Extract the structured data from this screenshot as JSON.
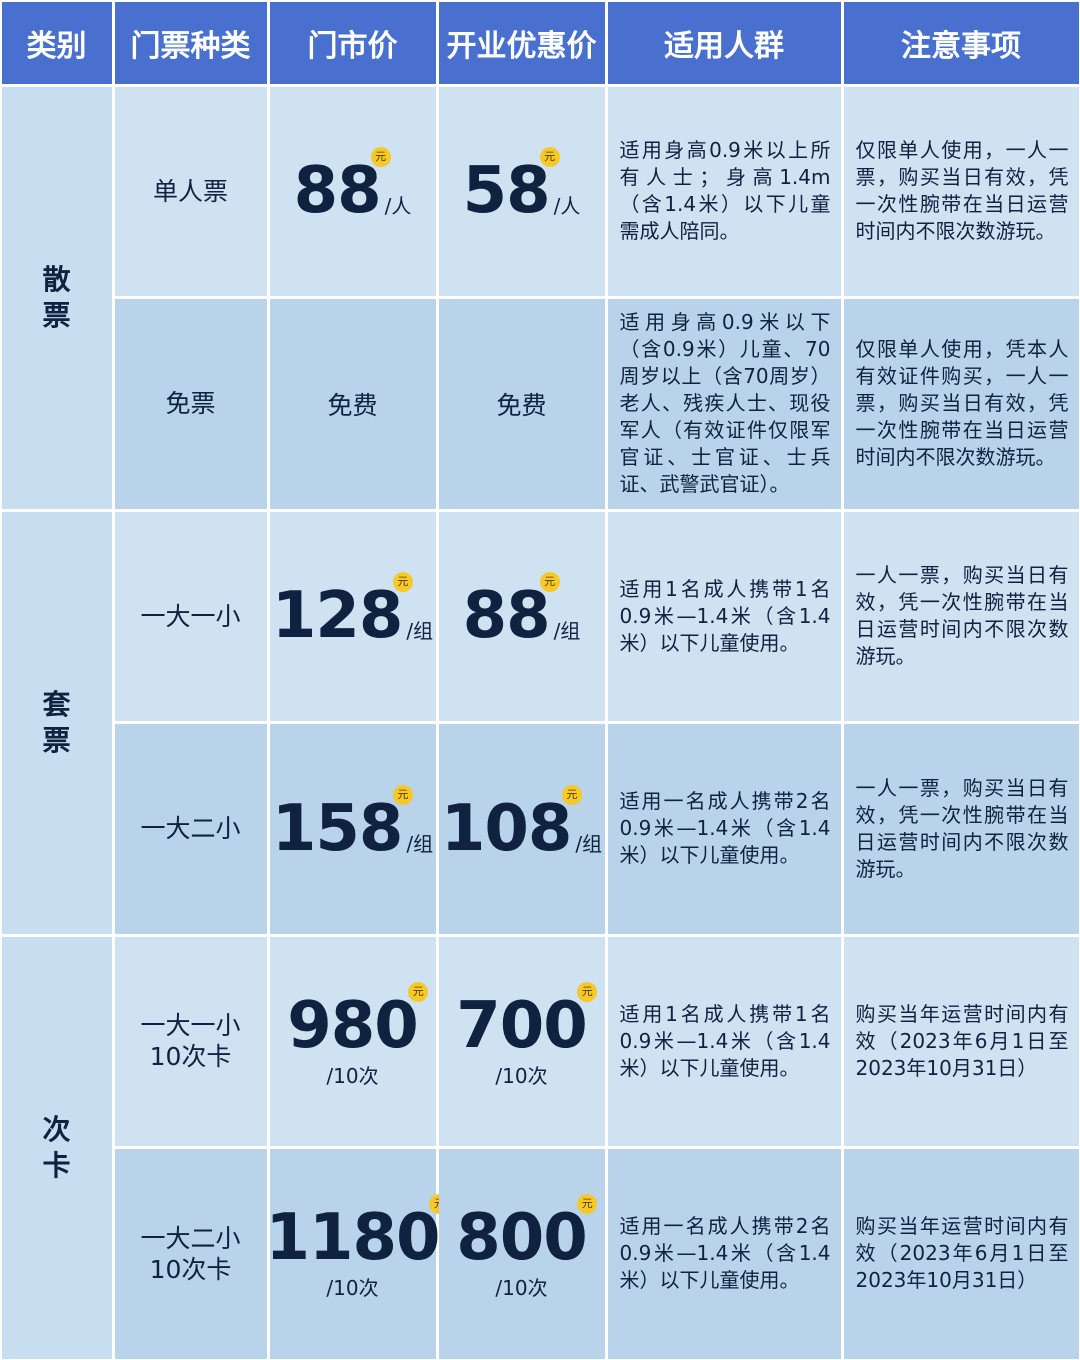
{
  "header": [
    "类别",
    "门票种类",
    "门市价",
    "开业优惠价",
    "适用人群",
    "注意事项"
  ],
  "groups": [
    {
      "category": "散票",
      "rows": [
        {
          "type": "单人票",
          "price": {
            "amount": 88,
            "badge": "元",
            "unit": "/人"
          },
          "promo": {
            "amount": 58,
            "badge": "元",
            "unit": "/人"
          },
          "audience": "适用身高0.9米以上所有人士；身高1.4m（含1.4米）以下儿童需成人陪同。",
          "notes": "仅限单人使用，一人一票，购买当日有效，凭一次性腕带在当日运营时间内不限次数游玩。"
        },
        {
          "type": "免票",
          "price": "免费",
          "promo": "免费",
          "audience": "适用身高0.9米以下（含0.9米）儿童、70周岁以上（含70周岁）老人、残疾人士、现役军人（有效证件仅限军官证、士官证、士兵证、武警武官证）。",
          "notes": "仅限单人使用，凭本人有效证件购买，一人一票，购买当日有效，凭一次性腕带在当日运营时间内不限次数游玩。"
        }
      ]
    },
    {
      "category": "套票",
      "rows": [
        {
          "type": "一大一小",
          "price": {
            "amount": 128,
            "badge": "元",
            "unit": "/组"
          },
          "promo": {
            "amount": 88,
            "badge": "元",
            "unit": "/组"
          },
          "audience": "适用1名成人携带1名0.9米—1.4米（含1.4米）以下儿童使用。",
          "notes": "一人一票，购买当日有效，凭一次性腕带在当日运营时间内不限次数游玩。"
        },
        {
          "type": "一大二小",
          "price": {
            "amount": 158,
            "badge": "元",
            "unit": "/组"
          },
          "promo": {
            "amount": 108,
            "badge": "元",
            "unit": "/组"
          },
          "audience": "适用一名成人携带2名0.9米—1.4米（含1.4米）以下儿童使用。",
          "notes": "一人一票，购买当日有效，凭一次性腕带在当日运营时间内不限次数游玩。"
        }
      ]
    },
    {
      "category": "次卡",
      "rows": [
        {
          "type": "一大一小\n10次卡",
          "price": {
            "amount": 980,
            "badge": "元",
            "unit": "/10次"
          },
          "promo": {
            "amount": 700,
            "badge": "元",
            "unit": "/10次"
          },
          "audience": "适用1名成人携带1名0.9米—1.4米（含1.4米）以下儿童使用。",
          "notes": "购买当年运营时间内有效（2023年6月1日至2023年10月31日）"
        },
        {
          "type": "一大二小\n10次卡",
          "price": {
            "amount": 1180,
            "badge": "元",
            "unit": "/10次"
          },
          "promo": {
            "amount": 800,
            "badge": "元",
            "unit": "/10次"
          },
          "audience": "适用一名成人携带2名0.9米—1.4米（含1.4米）以下儿童使用。",
          "notes": "购买当年运营时间内有效（2023年6月1日至2023年10月31日）"
        }
      ]
    }
  ]
}
